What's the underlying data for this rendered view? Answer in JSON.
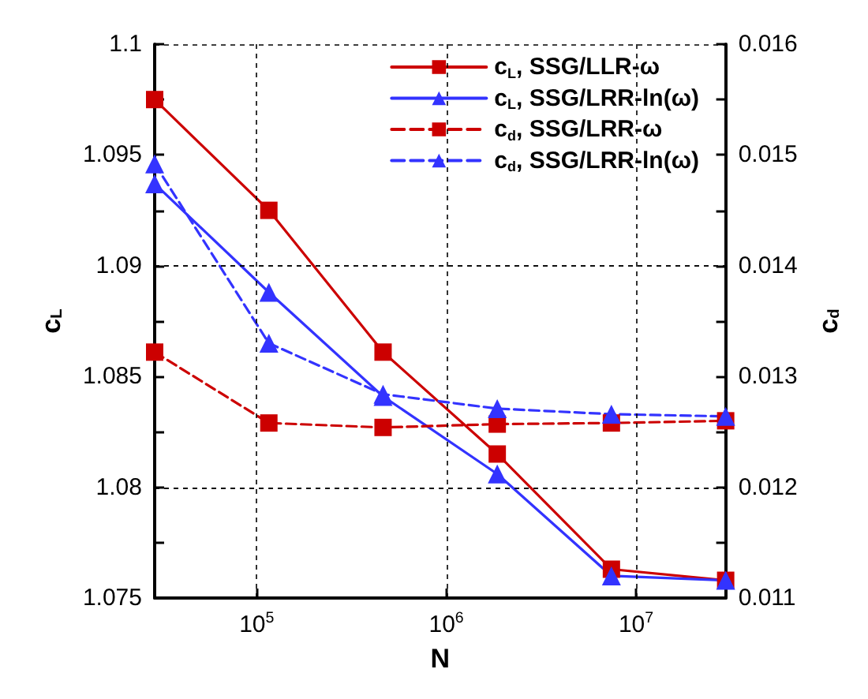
{
  "chart_data": {
    "type": "line",
    "xlabel": "N",
    "ylabel": "c$_{L}$",
    "y2label": "c$_{d}$",
    "log": "x",
    "x": [
      29000,
      116000,
      464000,
      1856000,
      7420000,
      29700000
    ],
    "xlim": [
      29000,
      29700000
    ],
    "xticks": [
      {
        "value": 100000,
        "label": "10$^{5}$"
      },
      {
        "value": 1000000,
        "label": "10$^{6}$"
      },
      {
        "value": 10000000,
        "label": "10$^{7}$"
      }
    ],
    "ylim": [
      1.075,
      1.1
    ],
    "yticks": [
      1.075,
      {
        "value": 1.0775,
        "label": null
      },
      1.08,
      {
        "value": 1.0825,
        "label": null
      },
      1.085,
      {
        "value": 1.0875,
        "label": null
      },
      1.09,
      {
        "value": 1.0925,
        "label": null
      },
      1.095,
      {
        "value": 1.0975,
        "label": null
      },
      1.1
    ],
    "y2lim": [
      0.011,
      0.016
    ],
    "y2ticks": [
      0.011,
      {
        "value": 0.0115,
        "label": null
      },
      0.012,
      {
        "value": 0.0125,
        "label": null
      },
      0.013,
      {
        "value": 0.0135,
        "label": null
      },
      0.014,
      {
        "value": 0.0145,
        "label": null
      },
      0.015,
      {
        "value": 0.0155,
        "label": null
      },
      0.016
    ],
    "grid": true,
    "legend": "top right",
    "series": [
      {
        "name": "c$_{L}$, SSG/LLR-ω",
        "color": "#cc0000",
        "marker": "square",
        "line_style": "solid",
        "values": [
          1.0975,
          1.0925,
          1.0861,
          1.0815,
          1.0763,
          1.0758
        ]
      },
      {
        "name": "c$_{L}$, SSG/LRR-ln(ω)",
        "color": "#3333ff",
        "marker": "triangle",
        "line_style": "solid",
        "values": [
          1.0937,
          1.0888,
          1.0841,
          1.0806,
          1.076,
          1.0758
        ]
      },
      {
        "name": "c$_{d}$, SSG/LRR-ω",
        "color": "#cc0000",
        "marker": "square",
        "line_style": "dashed",
        "axis": "y2",
        "values": [
          0.01322,
          0.01258,
          0.01254,
          0.01257,
          0.01258,
          0.0126
        ]
      },
      {
        "name": "c$_{d}$, SSG/LRR-ln(ω)",
        "color": "#3333ff",
        "marker": "triangle",
        "line_style": "dashed",
        "axis": "y2",
        "values": [
          0.01492,
          0.0133,
          0.01284,
          0.01271,
          0.01266,
          0.01264
        ]
      }
    ]
  }
}
